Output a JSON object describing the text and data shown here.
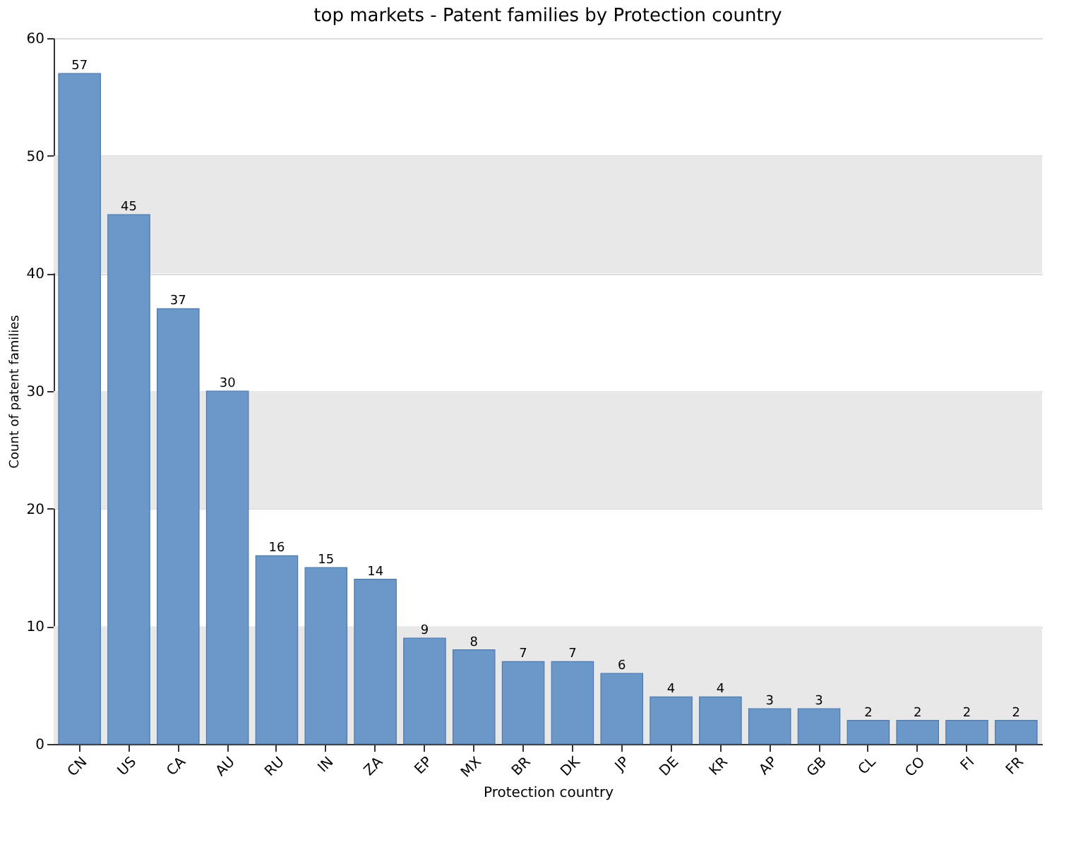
{
  "chart_data": {
    "type": "bar",
    "title": "top markets - Patent families by Protection country",
    "xlabel": "Protection country",
    "ylabel": "Count of patent families",
    "categories": [
      "CN",
      "US",
      "CA",
      "AU",
      "RU",
      "IN",
      "ZA",
      "EP",
      "MX",
      "BR",
      "DK",
      "JP",
      "DE",
      "KR",
      "AP",
      "GB",
      "CL",
      "CO",
      "FI",
      "FR"
    ],
    "values": [
      57,
      45,
      37,
      30,
      16,
      15,
      14,
      9,
      8,
      7,
      7,
      6,
      4,
      4,
      3,
      3,
      2,
      2,
      2,
      2
    ],
    "color": "#6b98c8",
    "ylim": [
      0,
      60
    ],
    "yticks": [
      0,
      10,
      20,
      30,
      40,
      50,
      60
    ],
    "grid": "y",
    "data_labels": true,
    "bands": [
      {
        "axis": "y",
        "from": 0,
        "to": 10,
        "color": "#e8e8e8"
      },
      {
        "axis": "y",
        "from": 20,
        "to": 30,
        "color": "#e8e8e8"
      },
      {
        "axis": "y",
        "from": 40,
        "to": 50,
        "color": "#e8e8e8"
      }
    ]
  }
}
